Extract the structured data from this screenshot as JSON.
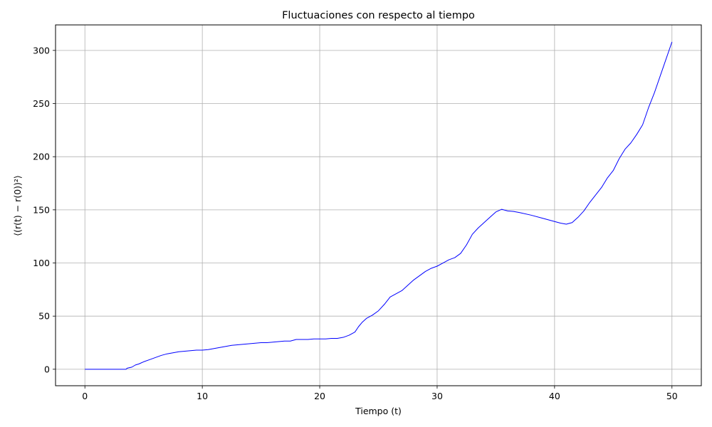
{
  "chart_data": {
    "type": "line",
    "title": "Fluctuaciones con respecto al tiempo",
    "xlabel": "Tiempo (t)",
    "ylabel": "⟨(r(t) − r(0))²⟩",
    "xlim": [
      -2.5,
      52.5
    ],
    "ylim": [
      -15.5,
      324
    ],
    "x_ticks": [
      0,
      10,
      20,
      30,
      40,
      50
    ],
    "y_ticks": [
      0,
      50,
      100,
      150,
      200,
      250,
      300
    ],
    "grid": true,
    "line_color": "#0000ff",
    "grid_color": "#b0b0b0",
    "series": [
      {
        "x": [
          0,
          0.5,
          1,
          1.5,
          2,
          2.5,
          3,
          3.5,
          3.6,
          4.0,
          4.3,
          4.6,
          5.0,
          5.5,
          6.0,
          6.5,
          7.0,
          7.5,
          8.0,
          8.5,
          9.0,
          9.5,
          10.0,
          10.5,
          11.0,
          11.5,
          12.0,
          12.5,
          13.0,
          13.5,
          14.0,
          14.5,
          15.0,
          15.5,
          16.0,
          16.5,
          17.0,
          17.5,
          18.0,
          18.5,
          19.0,
          19.5,
          20.0,
          20.5,
          21.0,
          21.5,
          22.0,
          22.5,
          23.0,
          23.3,
          23.6,
          24.0,
          24.5,
          25.0,
          25.5,
          26.0,
          26.5,
          27.0,
          27.5,
          28.0,
          28.5,
          29.0,
          29.5,
          30.0,
          30.5,
          31.0,
          31.5,
          32.0,
          32.5,
          33.0,
          33.5,
          34.0,
          34.5,
          35.0,
          35.5,
          36.0,
          36.5,
          37.0,
          38.0,
          39.0,
          40.0,
          40.5,
          41.0,
          41.5,
          42.0,
          42.5,
          43.0,
          43.5,
          44.0,
          44.5,
          45.0,
          45.5,
          46.0,
          46.5,
          47.0,
          47.5,
          48.0,
          48.5,
          49.0,
          49.5,
          50.0
        ],
        "y": [
          0,
          0,
          0,
          0,
          0,
          0,
          0,
          0,
          1,
          2,
          4,
          5,
          7,
          9,
          11,
          13,
          14.5,
          15.5,
          16.5,
          17,
          17.5,
          18,
          18,
          18.5,
          19.5,
          20.5,
          21.5,
          22.5,
          23,
          23.5,
          24,
          24.5,
          25,
          25,
          25.5,
          26,
          26.5,
          26.5,
          28,
          28,
          28,
          28.5,
          28.5,
          28.5,
          29,
          29,
          30,
          32,
          35,
          40,
          44,
          48,
          51,
          55,
          61,
          68,
          71,
          74,
          79,
          84,
          88,
          92,
          95,
          97,
          100,
          103,
          105,
          109,
          117,
          127,
          133,
          138,
          143,
          148,
          150.5,
          149,
          148.5,
          147.5,
          145,
          142,
          139,
          137.5,
          136.5,
          138,
          143,
          149,
          157,
          164,
          171,
          180,
          187,
          198,
          207,
          213,
          221,
          230,
          246,
          260,
          276,
          292,
          308
        ]
      }
    ]
  }
}
